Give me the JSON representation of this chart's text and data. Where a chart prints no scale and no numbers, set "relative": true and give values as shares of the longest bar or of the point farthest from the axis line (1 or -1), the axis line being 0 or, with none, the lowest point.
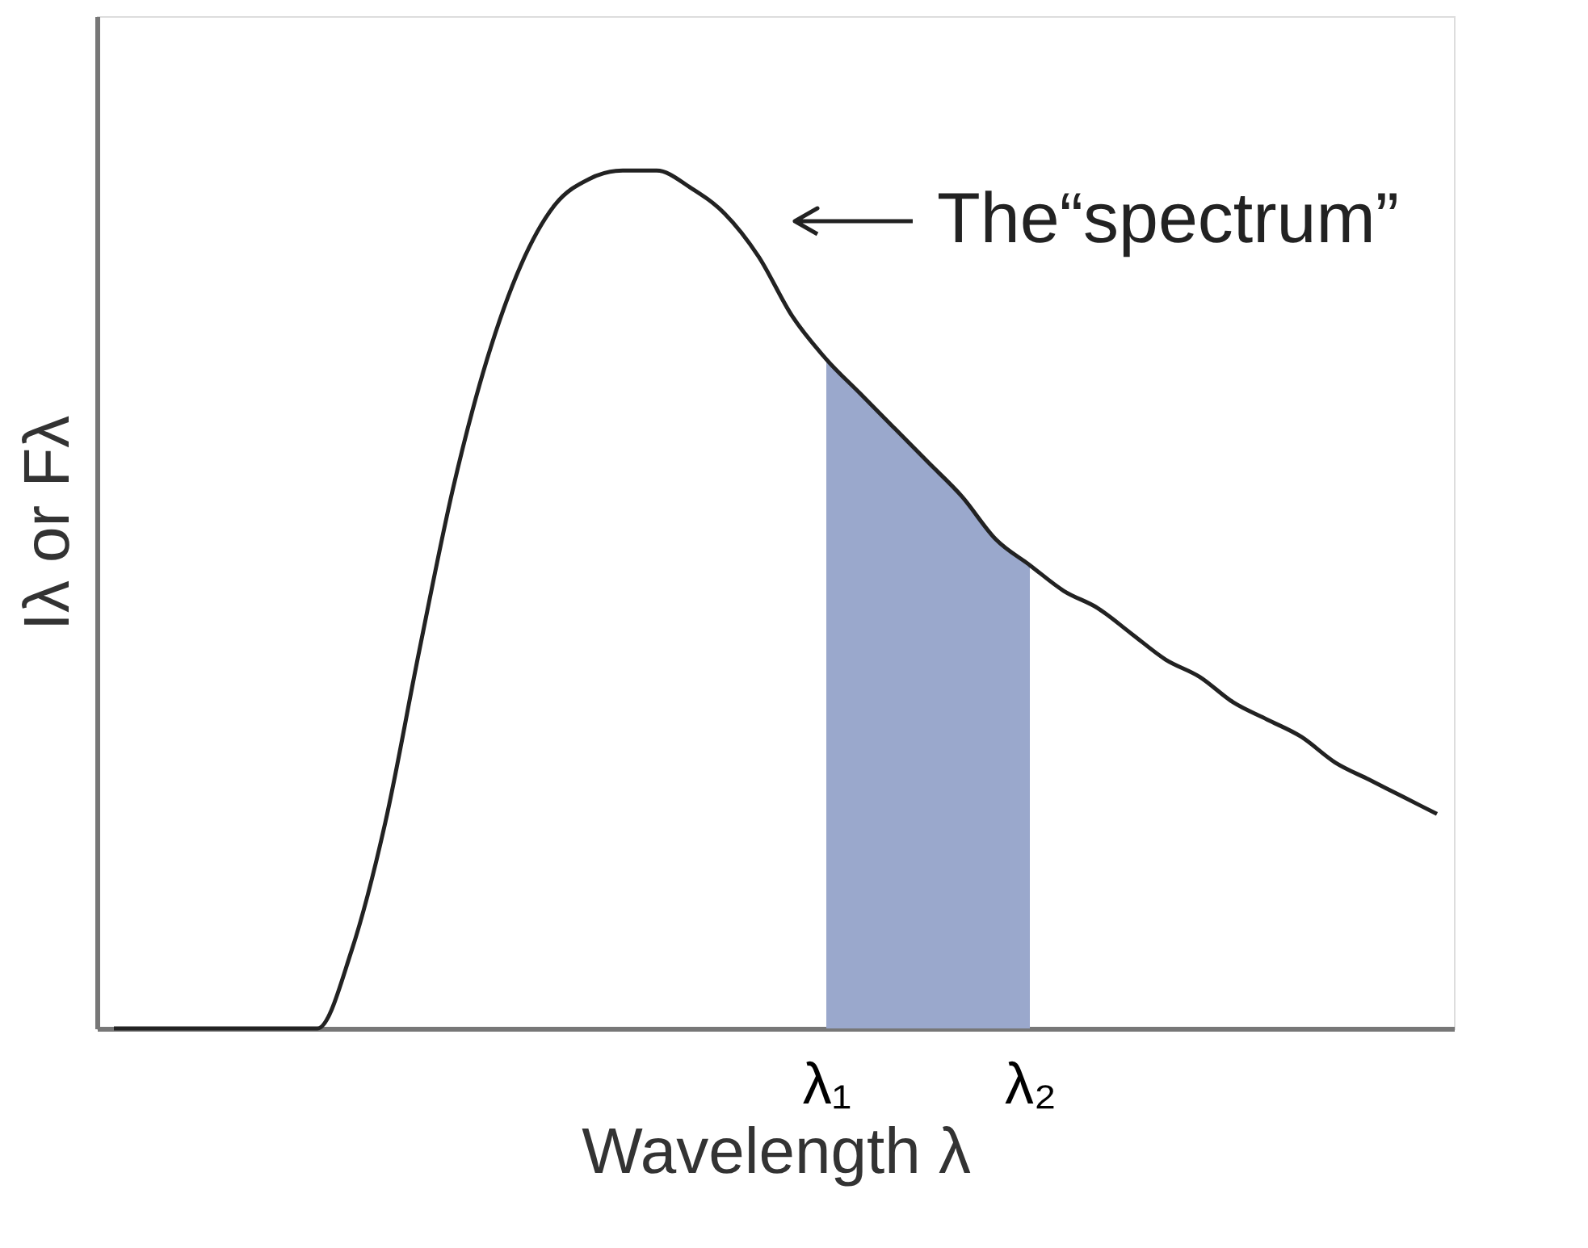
{
  "chart_data": {
    "type": "line",
    "relative": true,
    "xlabel": "Wavelength λ",
    "ylabel": "Iλ or Fλ",
    "categories": [
      null,
      null,
      null,
      null,
      null,
      null,
      null,
      null,
      null,
      null,
      null,
      null,
      null,
      null,
      null,
      null,
      null,
      null,
      null,
      null,
      null,
      "λ₁",
      null,
      null,
      null,
      null,
      null,
      "λ₂",
      null,
      null,
      null,
      null,
      null,
      null,
      null,
      null,
      null,
      null,
      null,
      null
    ],
    "series": [
      {
        "color": "#222222",
        "values": [
          0,
          0,
          0,
          0,
          0,
          0,
          0,
          0.09,
          0.24,
          0.44,
          0.63,
          0.78,
          0.89,
          0.96,
          0.99,
          1.0,
          1.0,
          0.98,
          0.95,
          0.9,
          0.83,
          0.78,
          0.74,
          0.7,
          0.66,
          0.62,
          0.57,
          0.54,
          0.51,
          0.49,
          0.46,
          0.43,
          0.41,
          0.38,
          0.36,
          0.34,
          0.31,
          0.29,
          0.27,
          0.25
        ]
      },
      {
        "type": "area",
        "color": "#9aa8cc",
        "values": [
          null,
          null,
          null,
          null,
          null,
          null,
          null,
          null,
          null,
          null,
          null,
          null,
          null,
          null,
          null,
          null,
          null,
          null,
          null,
          null,
          null,
          0.78,
          0.74,
          0.7,
          0.66,
          0.62,
          0.57,
          0.54,
          null,
          null,
          null,
          null,
          null,
          null,
          null,
          null,
          null,
          null,
          null,
          null
        ]
      }
    ],
    "annotations": [
      "The“spectrum”"
    ],
    "grid": false,
    "marker": "none",
    "line_style": "solid"
  }
}
